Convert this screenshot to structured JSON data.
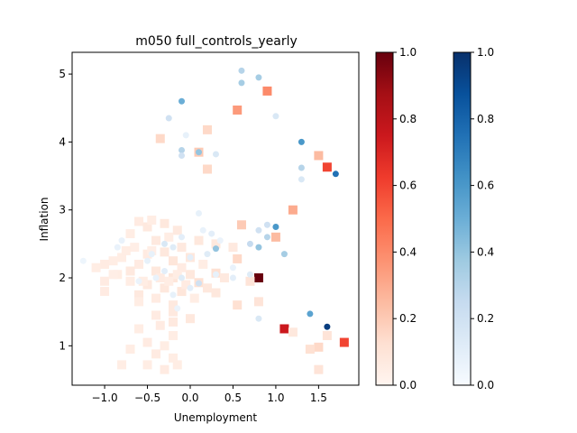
{
  "chart_data": {
    "type": "scatter",
    "title": "m050 full_controls_yearly",
    "xlabel": "Unemployment",
    "ylabel": "Inflation",
    "xlim": [
      -1.38,
      1.97
    ],
    "ylim": [
      0.42,
      5.32
    ],
    "xticks": [
      "−1.0",
      "−0.5",
      "0.0",
      "0.5",
      "1.0",
      "1.5"
    ],
    "xtick_values": [
      -1.0,
      -0.5,
      0.0,
      0.5,
      1.0,
      1.5
    ],
    "yticks": [
      "1",
      "2",
      "3",
      "4",
      "5"
    ],
    "ytick_values": [
      1,
      2,
      3,
      4,
      5
    ],
    "grid": false,
    "colorbars": [
      {
        "cmap": "Reds",
        "ticks": [
          "0.0",
          "0.2",
          "0.4",
          "0.6",
          "0.8",
          "1.0"
        ],
        "tick_values": [
          0.0,
          0.2,
          0.4,
          0.6,
          0.8,
          1.0
        ],
        "low_color": "#fff5f0",
        "high_color": "#67000d"
      },
      {
        "cmap": "Blues",
        "ticks": [
          "0.0",
          "0.2",
          "0.4",
          "0.6",
          "0.8",
          "1.0"
        ],
        "tick_values": [
          0.0,
          0.2,
          0.4,
          0.6,
          0.8,
          1.0
        ],
        "low_color": "#f7fbff",
        "high_color": "#08306b"
      }
    ],
    "series": [
      {
        "marker": "square",
        "cmap": "Reds",
        "points": [
          [
            0.9,
            4.75,
            0.4
          ],
          [
            0.55,
            4.47,
            0.35
          ],
          [
            0.2,
            4.18,
            0.15
          ],
          [
            -0.35,
            4.05,
            0.15
          ],
          [
            0.1,
            3.85,
            0.2
          ],
          [
            0.2,
            3.6,
            0.15
          ],
          [
            1.6,
            3.63,
            0.6
          ],
          [
            1.5,
            3.8,
            0.25
          ],
          [
            1.2,
            3.0,
            0.3
          ],
          [
            0.6,
            2.78,
            0.2
          ],
          [
            1.0,
            2.6,
            0.25
          ],
          [
            0.8,
            2.0,
            1.0
          ],
          [
            1.1,
            1.25,
            0.75
          ],
          [
            1.8,
            1.05,
            0.6
          ],
          [
            1.5,
            0.98,
            0.15
          ],
          [
            1.4,
            0.95,
            0.12
          ],
          [
            1.6,
            1.15,
            0.1
          ],
          [
            1.2,
            1.2,
            0.08
          ],
          [
            1.5,
            0.65,
            0.1
          ],
          [
            0.55,
            2.28,
            0.15
          ],
          [
            0.3,
            2.07,
            0.12
          ],
          [
            0.1,
            1.93,
            0.12
          ],
          [
            0.55,
            1.6,
            0.12
          ],
          [
            0.7,
            1.95,
            0.1
          ],
          [
            0.2,
            1.85,
            0.08
          ],
          [
            0.0,
            1.4,
            0.08
          ],
          [
            -0.2,
            1.5,
            0.07
          ],
          [
            0.3,
            1.78,
            0.08
          ],
          [
            0.8,
            1.65,
            0.1
          ],
          [
            0.3,
            2.5,
            0.08
          ],
          [
            0.1,
            2.55,
            0.08
          ],
          [
            0.5,
            2.45,
            0.07
          ],
          [
            -0.6,
            2.83,
            0.06
          ],
          [
            -0.5,
            2.75,
            0.07
          ],
          [
            -0.3,
            2.8,
            0.08
          ],
          [
            -0.15,
            2.7,
            0.07
          ],
          [
            -0.7,
            2.65,
            0.05
          ],
          [
            -0.4,
            2.55,
            0.07
          ],
          [
            -0.5,
            2.35,
            0.06
          ],
          [
            -0.3,
            2.38,
            0.08
          ],
          [
            -0.1,
            2.45,
            0.07
          ],
          [
            -0.2,
            2.25,
            0.09
          ],
          [
            0.0,
            2.3,
            0.08
          ],
          [
            -0.6,
            2.2,
            0.06
          ],
          [
            -0.8,
            2.3,
            0.05
          ],
          [
            -0.9,
            2.25,
            0.05
          ],
          [
            -1.0,
            2.2,
            0.06
          ],
          [
            -1.1,
            2.15,
            0.05
          ],
          [
            -0.7,
            2.1,
            0.07
          ],
          [
            -0.4,
            2.1,
            0.08
          ],
          [
            -0.2,
            2.0,
            0.09
          ],
          [
            0.0,
            2.05,
            0.08
          ],
          [
            -0.85,
            2.05,
            0.05
          ],
          [
            -1.0,
            1.95,
            0.06
          ],
          [
            -0.7,
            1.95,
            0.05
          ],
          [
            -0.5,
            1.9,
            0.07
          ],
          [
            -0.3,
            1.85,
            0.08
          ],
          [
            -0.1,
            1.8,
            0.09
          ],
          [
            -1.0,
            1.8,
            0.06
          ],
          [
            -0.6,
            1.75,
            0.07
          ],
          [
            -0.4,
            1.7,
            0.06
          ],
          [
            -0.2,
            1.6,
            0.07
          ],
          [
            -0.6,
            1.65,
            0.05
          ],
          [
            -0.4,
            1.45,
            0.06
          ],
          [
            -0.2,
            1.35,
            0.07
          ],
          [
            -0.6,
            1.25,
            0.05
          ],
          [
            -0.35,
            1.3,
            0.06
          ],
          [
            -0.2,
            1.15,
            0.05
          ],
          [
            -0.5,
            1.05,
            0.06
          ],
          [
            -0.3,
            1.0,
            0.05
          ],
          [
            -0.7,
            0.95,
            0.05
          ],
          [
            -0.4,
            0.88,
            0.06
          ],
          [
            -0.2,
            0.82,
            0.05
          ],
          [
            -0.5,
            0.72,
            0.05
          ],
          [
            -0.3,
            0.65,
            0.06
          ],
          [
            -0.15,
            0.72,
            0.05
          ],
          [
            -0.8,
            0.72,
            0.05
          ],
          [
            -0.1,
            2.15,
            0.06
          ],
          [
            0.15,
            2.2,
            0.05
          ],
          [
            0.4,
            2.0,
            0.07
          ],
          [
            -0.65,
            2.45,
            0.04
          ],
          [
            -0.25,
            2.6,
            0.05
          ],
          [
            -0.45,
            2.4,
            0.04
          ],
          [
            -0.75,
            2.4,
            0.05
          ],
          [
            -0.9,
            2.05,
            0.04
          ],
          [
            -0.55,
            1.95,
            0.05
          ],
          [
            -0.05,
            1.9,
            0.06
          ],
          [
            -0.25,
            1.95,
            0.05
          ],
          [
            -0.35,
            2.0,
            0.06
          ],
          [
            -0.15,
            2.05,
            0.05
          ],
          [
            0.05,
            1.7,
            0.05
          ],
          [
            -0.45,
            2.85,
            0.05
          ]
        ]
      },
      {
        "marker": "circle",
        "cmap": "Blues",
        "points": [
          [
            0.6,
            5.05,
            0.3
          ],
          [
            0.8,
            4.95,
            0.35
          ],
          [
            0.6,
            4.87,
            0.35
          ],
          [
            -0.1,
            4.6,
            0.5
          ],
          [
            -0.25,
            4.35,
            0.2
          ],
          [
            1.0,
            4.38,
            0.15
          ],
          [
            -0.1,
            3.88,
            0.3
          ],
          [
            0.1,
            3.85,
            0.4
          ],
          [
            -0.1,
            3.8,
            0.2
          ],
          [
            0.3,
            3.82,
            0.15
          ],
          [
            1.3,
            4.0,
            0.6
          ],
          [
            1.3,
            3.62,
            0.3
          ],
          [
            1.7,
            3.53,
            0.75
          ],
          [
            1.3,
            3.45,
            0.15
          ],
          [
            0.9,
            2.78,
            0.2
          ],
          [
            1.0,
            2.75,
            0.6
          ],
          [
            0.8,
            2.7,
            0.2
          ],
          [
            0.9,
            2.6,
            0.3
          ],
          [
            0.7,
            2.5,
            0.25
          ],
          [
            0.8,
            2.45,
            0.4
          ],
          [
            1.1,
            2.35,
            0.35
          ],
          [
            0.3,
            2.43,
            0.4
          ],
          [
            0.25,
            2.65,
            0.1
          ],
          [
            0.1,
            2.95,
            0.08
          ],
          [
            -0.05,
            4.1,
            0.08
          ],
          [
            1.4,
            1.47,
            0.55
          ],
          [
            1.6,
            1.28,
            0.95
          ],
          [
            0.8,
            1.4,
            0.15
          ],
          [
            0.1,
            1.92,
            0.2
          ],
          [
            -0.1,
            2.6,
            0.1
          ],
          [
            -0.3,
            2.5,
            0.15
          ],
          [
            -0.2,
            2.45,
            0.12
          ],
          [
            0.0,
            2.3,
            0.1
          ],
          [
            0.2,
            2.35,
            0.12
          ],
          [
            -0.5,
            2.25,
            0.08
          ],
          [
            -0.8,
            2.55,
            0.07
          ],
          [
            -1.25,
            2.25,
            0.05
          ],
          [
            -0.3,
            2.1,
            0.1
          ],
          [
            -0.1,
            2.0,
            0.12
          ],
          [
            0.0,
            1.85,
            0.1
          ],
          [
            -0.2,
            1.75,
            0.08
          ],
          [
            -0.4,
            2.0,
            0.07
          ],
          [
            -0.6,
            1.95,
            0.06
          ],
          [
            0.3,
            2.05,
            0.08
          ],
          [
            0.5,
            2.15,
            0.07
          ],
          [
            0.5,
            2.0,
            0.1
          ],
          [
            0.7,
            2.05,
            0.12
          ],
          [
            -0.85,
            2.45,
            0.07
          ],
          [
            -0.45,
            2.35,
            0.08
          ],
          [
            0.15,
            2.7,
            0.07
          ],
          [
            0.35,
            2.55,
            0.06
          ],
          [
            -0.15,
            1.55,
            0.06
          ]
        ]
      }
    ]
  }
}
